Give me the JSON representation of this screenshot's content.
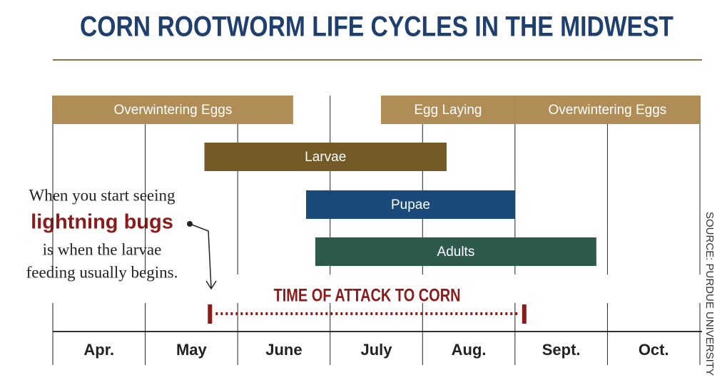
{
  "chart_data": {
    "type": "gantt",
    "title": "CORN ROOTWORM LIFE CYCLES IN THE MIDWEST",
    "categories": [
      "Apr.",
      "May",
      "June",
      "July",
      "Aug.",
      "Sept.",
      "Oct."
    ],
    "xlim": [
      0,
      7
    ],
    "xticks": [
      0,
      1,
      2,
      3,
      4,
      5,
      6,
      7
    ],
    "rows": [
      {
        "bars": [
          {
            "label": "Overwintering Eggs",
            "start": 0,
            "end": 2.6,
            "color": "#b08d57"
          },
          {
            "label": "Egg Laying",
            "start": 3.55,
            "end": 5,
            "color": "#b08d57"
          },
          {
            "label": "Overwintering Eggs",
            "start": 5,
            "end": 7,
            "color": "#b08d57"
          }
        ]
      },
      {
        "bars": [
          {
            "label": "Larvae",
            "start": 1.64,
            "end": 4.26,
            "color": "#735a26"
          }
        ]
      },
      {
        "bars": [
          {
            "label": "Pupae",
            "start": 2.74,
            "end": 5,
            "color": "#1a4a7a"
          }
        ]
      },
      {
        "bars": [
          {
            "label": "Adults",
            "start": 2.84,
            "end": 5.88,
            "color": "#2e5a4d"
          }
        ]
      }
    ],
    "attack": {
      "label": "TIME OF ATTACK TO CORN",
      "start": 1.7,
      "end": 5.1,
      "color": "#8b1a1a"
    },
    "annotation": [
      "When you start seeing",
      "lightning bugs",
      "is when the larvae",
      "feeding usually begins."
    ],
    "source": "SOURCE: PURDUE UNIVERSITY"
  }
}
